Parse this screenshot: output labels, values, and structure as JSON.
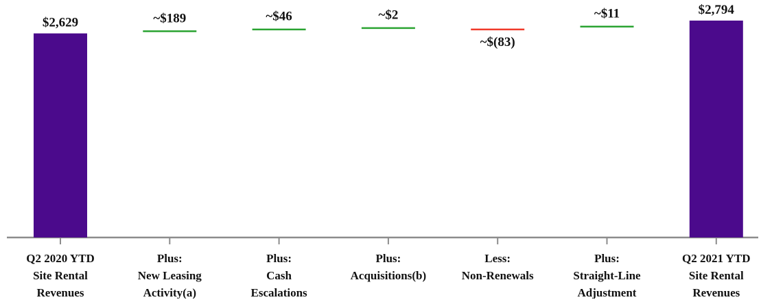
{
  "chart_data": {
    "type": "bar",
    "subtype": "waterfall",
    "title": "",
    "xlabel": "",
    "ylabel": "",
    "categories": [
      [
        "Q2 2020 YTD",
        "Site Rental",
        "Revenues"
      ],
      [
        "Plus:",
        "New Leasing",
        "Activity(a)"
      ],
      [
        "Plus:",
        "Cash",
        "Escalations"
      ],
      [
        "Plus:",
        "Acquisitions(b)"
      ],
      [
        "Less:",
        "Non-Renewals"
      ],
      [
        "Plus:",
        "Straight-Line",
        "Adjustment"
      ],
      [
        "Q2 2021 YTD",
        "Site Rental",
        "Revenues"
      ]
    ],
    "values": [
      2629,
      189,
      46,
      2,
      -83,
      11,
      2794
    ],
    "kinds": [
      "total",
      "increase",
      "increase",
      "increase",
      "decrease",
      "increase",
      "total"
    ],
    "value_labels": [
      "$2,629",
      "~$189",
      "~$46",
      "~$2",
      "~$(83)",
      "~$11",
      "$2,794"
    ],
    "colors": {
      "total": "#4b0a8c",
      "increase": "#2aa331",
      "decrease": "#f03a2b",
      "axis": "#8c8c8c"
    },
    "ylim": [
      0,
      2900
    ],
    "grid": false,
    "legend": "none"
  }
}
